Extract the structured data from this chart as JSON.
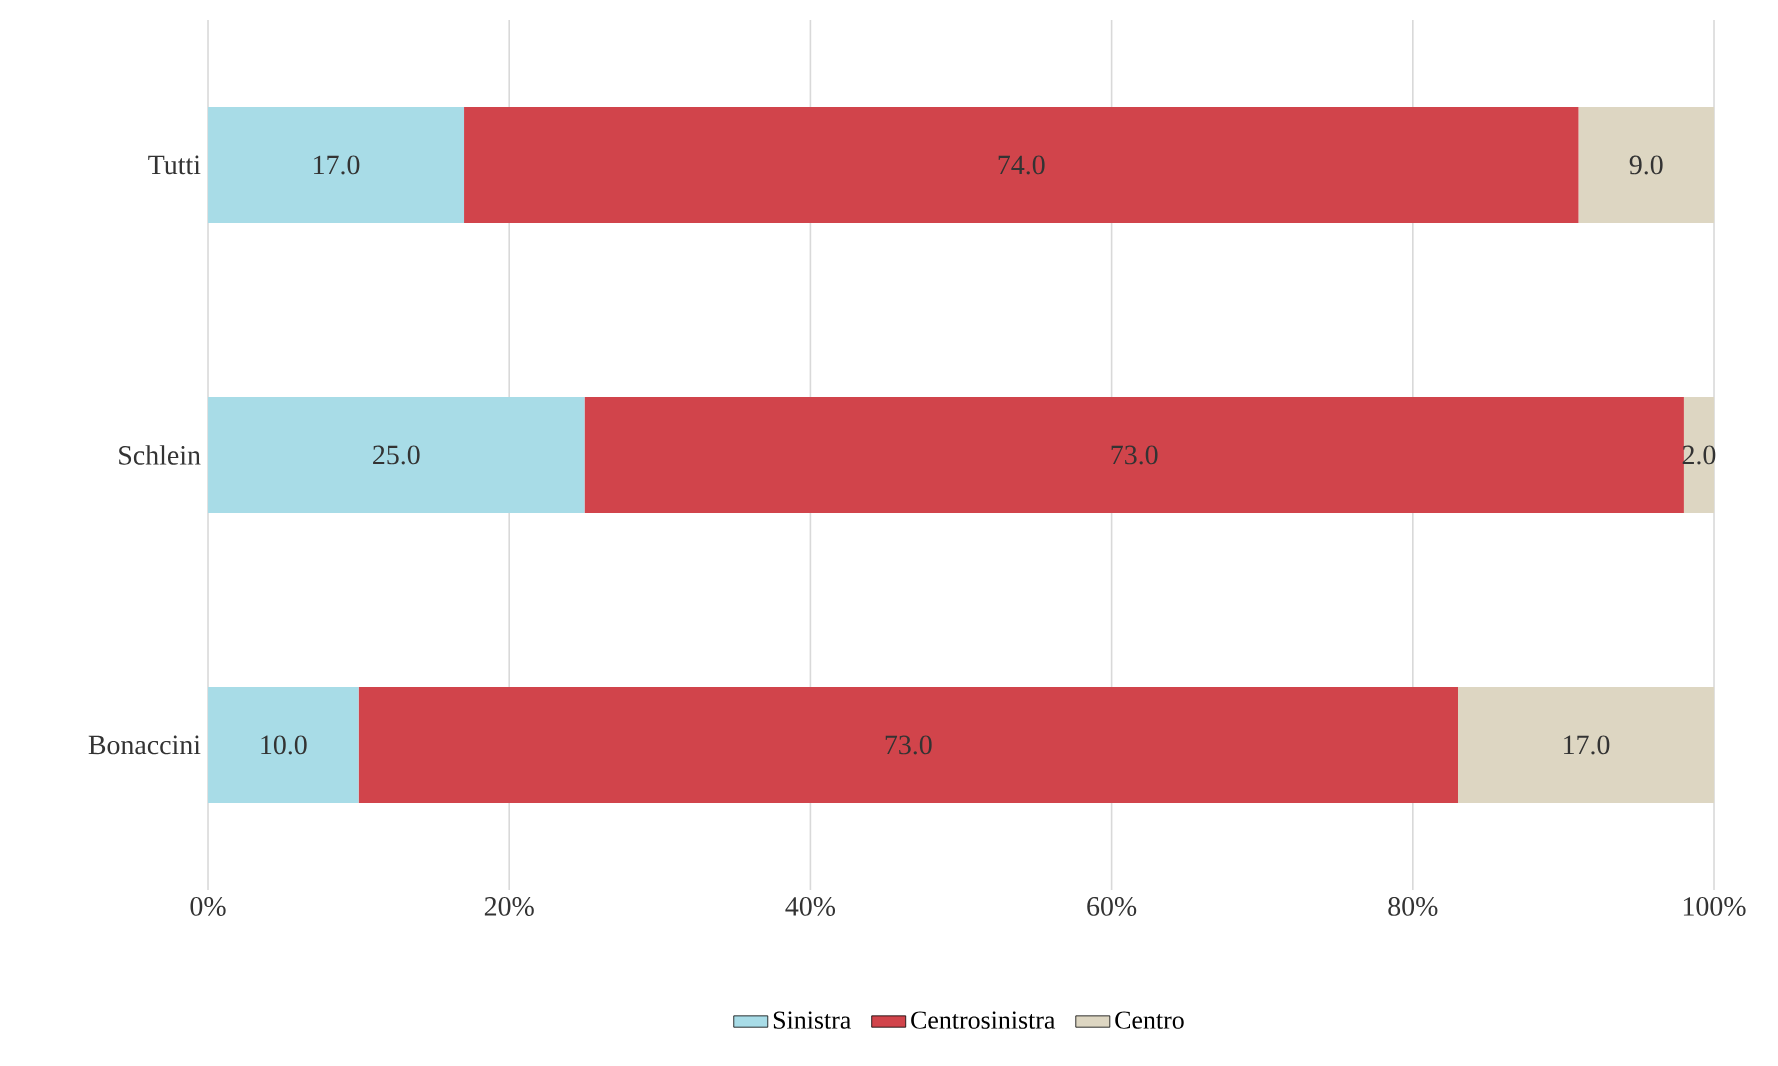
{
  "chart_data": {
    "type": "bar",
    "orientation": "horizontal",
    "stacked": true,
    "categories": [
      "Tutti",
      "Schlein",
      "Bonaccini"
    ],
    "series": [
      {
        "name": "Sinistra",
        "color": "#a8dce7",
        "values": [
          17.0,
          25.0,
          10.0
        ],
        "value_labels": [
          "17.0",
          "25.0",
          "10.0"
        ]
      },
      {
        "name": "Centrosinistra",
        "color": "#d1444b",
        "values": [
          74.0,
          73.0,
          73.0
        ],
        "value_labels": [
          "74.0",
          "73.0",
          "73.0"
        ]
      },
      {
        "name": "Centro",
        "color": "#ddd6c2",
        "values": [
          9.0,
          2.0,
          17.0
        ],
        "value_labels": [
          "9.0",
          "2.0",
          "17.0"
        ]
      }
    ],
    "xlim": [
      0,
      100
    ],
    "xticks": [
      {
        "value": 0,
        "label": "0%"
      },
      {
        "value": 20,
        "label": "20%"
      },
      {
        "value": 40,
        "label": "40%"
      },
      {
        "value": 60,
        "label": "60%"
      },
      {
        "value": 80,
        "label": "80%"
      },
      {
        "value": 100,
        "label": "100%"
      }
    ],
    "grid": "x",
    "legend": "bottom"
  }
}
